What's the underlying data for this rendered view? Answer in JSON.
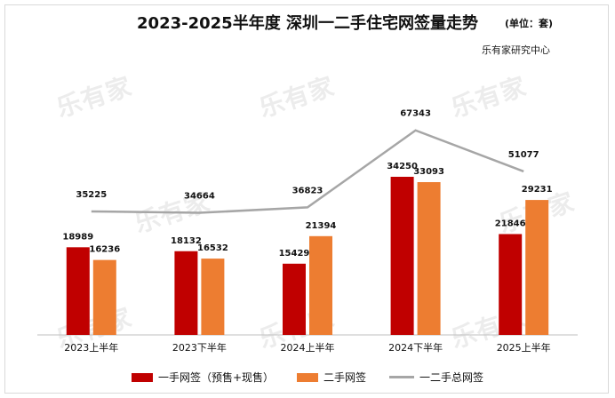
{
  "title": "2023-2025半年度 深圳一二手住宅网签量走势",
  "unit": "(单位：套)",
  "source": "乐有家研究中心",
  "watermark": "乐有家",
  "colors": {
    "first_hand": "#c00000",
    "second_hand": "#ed7d31",
    "total": "#a6a6a6"
  },
  "chart_data": {
    "type": "bar",
    "categories": [
      "2023上半年",
      "2023下半年",
      "2024上半年",
      "2024下半年",
      "2025上半年"
    ],
    "series": [
      {
        "name": "一手网签（预售+现售）",
        "type": "bar",
        "values": [
          18989,
          18132,
          15429,
          34250,
          21846
        ]
      },
      {
        "name": "二手网签",
        "type": "bar",
        "values": [
          16236,
          16532,
          21394,
          33093,
          29231
        ]
      },
      {
        "name": "一二手总网签",
        "type": "line",
        "values": [
          35225,
          34664,
          36823,
          67343,
          51077
        ]
      }
    ],
    "legend_position": "bottom",
    "grid": false
  }
}
